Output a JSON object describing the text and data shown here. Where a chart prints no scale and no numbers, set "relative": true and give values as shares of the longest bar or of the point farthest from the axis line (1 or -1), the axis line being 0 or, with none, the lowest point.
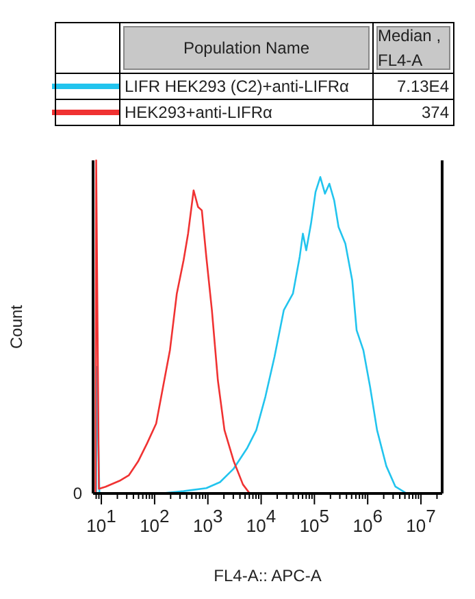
{
  "chart_data": {
    "type": "line",
    "relative": true,
    "log": "x",
    "xlabel": "FL4-A:: APC-A",
    "ylabel": "Count",
    "legend": "top",
    "tick_labels": "x",
    "xlim": [
      7,
      25000000
    ],
    "xticks": [
      {
        "value": 8,
        "label": null
      },
      {
        "value": 9,
        "label": null
      },
      {
        "value": 10,
        "label": "10$^{1}$"
      },
      {
        "value": 20,
        "label": null
      },
      {
        "value": 30,
        "label": null
      },
      {
        "value": 40,
        "label": null
      },
      {
        "value": 50,
        "label": null
      },
      {
        "value": 60,
        "label": null
      },
      {
        "value": 70,
        "label": null
      },
      {
        "value": 80,
        "label": null
      },
      {
        "value": 90,
        "label": null
      },
      {
        "value": 100,
        "label": "10$^{2}$"
      },
      {
        "value": 200,
        "label": null
      },
      {
        "value": 300,
        "label": null
      },
      {
        "value": 400,
        "label": null
      },
      {
        "value": 500,
        "label": null
      },
      {
        "value": 600,
        "label": null
      },
      {
        "value": 700,
        "label": null
      },
      {
        "value": 800,
        "label": null
      },
      {
        "value": 900,
        "label": null
      },
      {
        "value": 1000,
        "label": "10$^{3}$"
      },
      {
        "value": 2000,
        "label": null
      },
      {
        "value": 3000,
        "label": null
      },
      {
        "value": 4000,
        "label": null
      },
      {
        "value": 5000,
        "label": null
      },
      {
        "value": 6000,
        "label": null
      },
      {
        "value": 7000,
        "label": null
      },
      {
        "value": 8000,
        "label": null
      },
      {
        "value": 9000,
        "label": null
      },
      {
        "value": 10000,
        "label": "10$^{4}$"
      },
      {
        "value": 20000,
        "label": null
      },
      {
        "value": 30000,
        "label": null
      },
      {
        "value": 40000,
        "label": null
      },
      {
        "value": 50000,
        "label": null
      },
      {
        "value": 60000,
        "label": null
      },
      {
        "value": 70000,
        "label": null
      },
      {
        "value": 80000,
        "label": null
      },
      {
        "value": 90000,
        "label": null
      },
      {
        "value": 100000,
        "label": "10$^{5}$"
      },
      {
        "value": 200000,
        "label": null
      },
      {
        "value": 300000,
        "label": null
      },
      {
        "value": 400000,
        "label": null
      },
      {
        "value": 500000,
        "label": null
      },
      {
        "value": 600000,
        "label": null
      },
      {
        "value": 700000,
        "label": null
      },
      {
        "value": 800000,
        "label": null
      },
      {
        "value": 900000,
        "label": null
      },
      {
        "value": 1000000,
        "label": "10$^{6}$"
      },
      {
        "value": 2000000,
        "label": null
      },
      {
        "value": 3000000,
        "label": null
      },
      {
        "value": 4000000,
        "label": null
      },
      {
        "value": 5000000,
        "label": null
      },
      {
        "value": 6000000,
        "label": null
      },
      {
        "value": 7000000,
        "label": null
      },
      {
        "value": 8000000,
        "label": null
      },
      {
        "value": 9000000,
        "label": null
      },
      {
        "value": 10000000,
        "label": "10$^{7}$"
      },
      {
        "value": 20000000,
        "label": null
      }
    ],
    "annotations": [
      "0",
      "Population Name",
      "Median , FL4-A",
      "7.13E4",
      "374"
    ],
    "series": [
      {
        "name": "LIFR HEK293 (C2)+anti-LIFRα",
        "color": "#22c4ee",
        "x": [
          8,
          8.2,
          9.2,
          131,
          350,
          935,
          1690,
          3070,
          5500,
          8100,
          12000,
          17800,
          26600,
          39500,
          52900,
          60800,
          70200,
          86300,
          105000,
          129000,
          158000,
          191000,
          235000,
          284000,
          381000,
          512000,
          620000,
          830000,
          1110000,
          1500000,
          2240000,
          3300000,
          5400000,
          25000000
        ],
        "values": [
          0,
          0.38,
          0,
          0,
          0.007,
          0.016,
          0.034,
          0.075,
          0.137,
          0.19,
          0.29,
          0.41,
          0.55,
          0.6,
          0.71,
          0.78,
          0.73,
          0.81,
          0.905,
          0.95,
          0.9,
          0.93,
          0.88,
          0.8,
          0.75,
          0.64,
          0.49,
          0.43,
          0.32,
          0.19,
          0.082,
          0.021,
          0,
          0
        ]
      },
      {
        "name": "HEK293+anti-LIFRα",
        "color": "#f03232",
        "x": [
          7.8,
          8,
          9,
          12,
          22,
          33,
          49,
          72,
          107,
          144,
          194,
          261,
          350,
          425,
          540,
          655,
          770,
          935,
          1190,
          1540,
          2050,
          3070,
          4550,
          6100,
          25000000
        ],
        "values": [
          0,
          1,
          0.014,
          0.02,
          0.038,
          0.055,
          0.096,
          0.15,
          0.21,
          0.32,
          0.43,
          0.6,
          0.7,
          0.78,
          0.91,
          0.86,
          0.85,
          0.71,
          0.55,
          0.34,
          0.19,
          0.096,
          0.027,
          0,
          0
        ]
      }
    ]
  }
}
